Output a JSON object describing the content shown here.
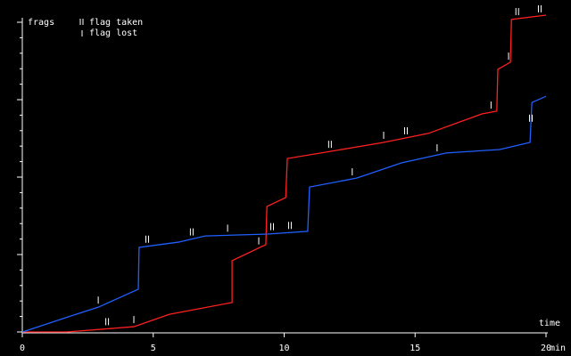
{
  "chart_data": {
    "type": "line",
    "y_label": "frags",
    "x_label": "time",
    "x_unit": "min",
    "legend": {
      "taken": "flag taken",
      "lost": "flag lost"
    },
    "xlim": [
      0,
      20
    ],
    "xticks": [
      0,
      5,
      10,
      15,
      20
    ],
    "ylim": [
      0,
      100
    ],
    "yticks": [
      0,
      25,
      50,
      75,
      100
    ],
    "y_minor_ticks": [
      5,
      10,
      15,
      20,
      30,
      35,
      40,
      45,
      55,
      60,
      65,
      70,
      80,
      85,
      90,
      95
    ],
    "series": [
      {
        "color": "#ff2020",
        "x": [
          0,
          1.7,
          4.26,
          5.62,
          8.01,
          8.01,
          9.3,
          9.34,
          10.06,
          10.12,
          11.76,
          13.8,
          15.5,
          17.55,
          18.12,
          18.16,
          18.64,
          18.68,
          20
        ],
        "values": [
          0,
          0,
          1.7,
          5.7,
          9.5,
          23,
          28.2,
          40.5,
          43.4,
          56,
          58.3,
          61.2,
          64.1,
          70.4,
          71.3,
          84.8,
          87.1,
          100.9,
          102.3
        ],
        "flags_taken_x": [
          3.24,
          11.75,
          14.65,
          18.9,
          19.76
        ],
        "flags_lost_x": [
          4.26,
          9.03,
          13.8,
          17.9,
          18.57
        ]
      },
      {
        "color": "#2060ff",
        "x": [
          0,
          0.51,
          1.87,
          2.9,
          4.43,
          4.46,
          5.96,
          6.98,
          9.37,
          10.9,
          10.97,
          12.78,
          14.48,
          16.19,
          18.23,
          19.39,
          19.46,
          20
        ],
        "values": [
          0,
          1.4,
          5.2,
          8,
          13.8,
          27.3,
          29,
          31,
          31.6,
          32.5,
          46.8,
          49.7,
          54.6,
          57.8,
          58.9,
          61.2,
          74.1,
          76.1
        ],
        "flags_taken_x": [
          4.77,
          6.47,
          9.54,
          10.22,
          19.42
        ],
        "flags_lost_x": [
          2.9,
          7.84,
          12.6,
          15.84
        ]
      }
    ]
  }
}
